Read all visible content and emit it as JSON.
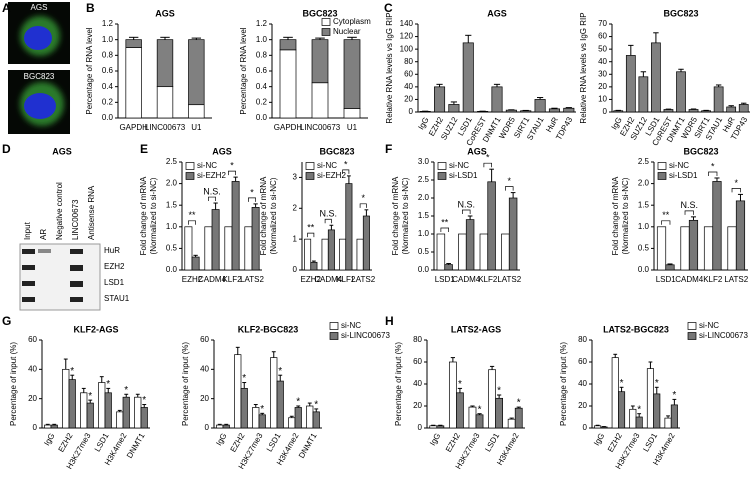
{
  "panel_labels": [
    "A",
    "B",
    "C",
    "D",
    "E",
    "F",
    "G",
    "H"
  ],
  "images": {
    "labels": [
      "AGS",
      "BGC823"
    ]
  },
  "blot": {
    "title": "AGS",
    "lanes": [
      "Input",
      "AR",
      "Negative control",
      "LINC00673",
      "Antisense RNA"
    ],
    "proteins": [
      "HuR",
      "EZH2",
      "LSD1",
      "STAU1"
    ]
  },
  "chart_data": [
    {
      "type": "stacked_bar",
      "title": "AGS",
      "ylabel": "Percentage of RNA level",
      "categories": [
        "GAPDH",
        "LINC00673",
        "U1"
      ],
      "series": [
        {
          "color": "#ffffff",
          "values": [
            0.9,
            0.4,
            0.17
          ],
          "errors": [
            0.02,
            0.03,
            0.02
          ]
        },
        {
          "color": "#808080",
          "values": [
            0.1,
            0.6,
            0.83
          ],
          "errors": [
            0.03,
            0.03,
            0.02
          ]
        }
      ],
      "ylim": [
        0,
        1.2
      ],
      "yticks": [
        {
          "value": 0,
          "label": "0.0"
        },
        0.2,
        0.4,
        0.6,
        0.8,
        {
          "value": 1,
          "label": "1.0"
        },
        1.2
      ]
    },
    {
      "type": "stacked_bar",
      "title": "BGC823",
      "ylabel": "Percentage of RNA level",
      "categories": [
        "GAPDH",
        "LINC00673",
        "U1"
      ],
      "legend": "upper right",
      "series": [
        {
          "name": "Cytoplasm",
          "color": "#ffffff",
          "values": [
            0.87,
            0.45,
            0.12
          ],
          "errors": [
            0.02,
            0.02,
            0.02
          ]
        },
        {
          "name": "Nuclear",
          "color": "#808080",
          "values": [
            0.13,
            0.55,
            0.88
          ],
          "errors": [
            0.03,
            0.02,
            0.03
          ]
        }
      ],
      "ylim": [
        0,
        1.2
      ],
      "yticks": [
        {
          "value": 0,
          "label": "0.0"
        },
        0.2,
        0.4,
        0.6,
        0.8,
        {
          "value": 1,
          "label": "1.0"
        },
        1.2
      ]
    },
    {
      "type": "bar",
      "title": "AGS",
      "ylabel": "Relative RNA levels vs IgG RIP",
      "categories": [
        "IgG",
        "EZH2",
        "SUZ12",
        "LSD1",
        "CoREST",
        "DNMT1",
        "WDR5",
        "SIRT1",
        "STAU1",
        "HuR",
        "TDP43"
      ],
      "series": [
        {
          "color": "#808080",
          "values": [
            1,
            40,
            12,
            110,
            1,
            40,
            3,
            2,
            20,
            5,
            6
          ],
          "errors": [
            0.3,
            4,
            4,
            12,
            0.3,
            4,
            0.5,
            0.5,
            3,
            1,
            1
          ]
        }
      ],
      "ylim": [
        0,
        140
      ],
      "yticks": [
        0,
        20,
        40,
        60,
        80,
        100,
        120,
        140
      ]
    },
    {
      "type": "bar",
      "title": "BGC823",
      "ylabel": "Relative RNA levels vs IgG RIP",
      "categories": [
        "IgG",
        "EZH2",
        "SUZ12",
        "LSD1",
        "CoREST",
        "DNMT1",
        "WDR5",
        "SIRT1",
        "STAU1",
        "HuR",
        "TDP43"
      ],
      "series": [
        {
          "color": "#808080",
          "values": [
            1,
            45,
            28,
            55,
            2,
            32,
            2,
            1,
            20,
            4,
            6
          ],
          "errors": [
            0.3,
            8,
            4,
            8,
            0.3,
            2,
            0.4,
            0.3,
            1.5,
            1,
            1
          ]
        }
      ],
      "ylim": [
        0,
        70
      ],
      "yticks": [
        0,
        10,
        20,
        30,
        40,
        50,
        60,
        70
      ]
    },
    {
      "type": "bar",
      "title": "AGS",
      "ylabel": [
        "Fold change of mRNA",
        "(Normalized to si-NC)"
      ],
      "categories": [
        "EZH2",
        "CADM4",
        "KLF2",
        "LATS2"
      ],
      "legend": "upper left",
      "series": [
        {
          "name": "si-NC",
          "color": "#ffffff",
          "values": [
            1,
            1,
            1,
            1
          ]
        },
        {
          "name": "si-EZH2",
          "color": "#777777",
          "values": [
            0.3,
            1.4,
            2.05,
            1.45
          ],
          "errors": [
            0.04,
            0.15,
            0.1,
            0.08
          ]
        }
      ],
      "annotations": [
        "**",
        "N.S.",
        "*",
        "*"
      ],
      "ylim": [
        0,
        2.5
      ],
      "yticks": [
        {
          "value": 0,
          "label": "0.0"
        },
        0.5,
        {
          "value": 1,
          "label": "1.0"
        },
        1.5,
        {
          "value": 2,
          "label": "2.0"
        },
        2.5
      ]
    },
    {
      "type": "bar",
      "title": "BGC823",
      "ylabel": [
        "Fold change of mRNA",
        "(Normalized to si-NC)"
      ],
      "categories": [
        "EZH2",
        "CADM4",
        "KLF2",
        "LATS2"
      ],
      "legend": "upper left",
      "series": [
        {
          "name": "si-NC",
          "color": "#ffffff",
          "values": [
            1,
            1,
            1,
            1
          ]
        },
        {
          "name": "si-EZH2",
          "color": "#777777",
          "values": [
            0.25,
            1.3,
            2.8,
            1.75
          ],
          "errors": [
            0.04,
            0.15,
            0.25,
            0.2
          ]
        }
      ],
      "annotations": [
        "**",
        "N.S.",
        "*",
        "*"
      ],
      "ylim": [
        0,
        3.5
      ],
      "yticks": [
        0,
        1,
        2,
        3
      ]
    },
    {
      "type": "bar",
      "title": "AGS",
      "ylabel": [
        "Fold change of mRNA",
        "(Normalized to si-NC)"
      ],
      "categories": [
        "LSD1",
        "CADM4",
        "KLF2",
        "LATS2"
      ],
      "legend": "upper left",
      "series": [
        {
          "name": "si-NC",
          "color": "#ffffff",
          "values": [
            1,
            1,
            1,
            1
          ]
        },
        {
          "name": "si-LSD1",
          "color": "#777777",
          "values": [
            0.15,
            1.4,
            2.45,
            2.0
          ],
          "errors": [
            0.03,
            0.1,
            0.35,
            0.15
          ]
        }
      ],
      "annotations": [
        "**",
        "N.S.",
        "*",
        "*"
      ],
      "ylim": [
        0,
        3
      ],
      "yticks": [
        {
          "value": 0,
          "label": "0.0"
        },
        0.5,
        {
          "value": 1,
          "label": "1.0"
        },
        1.5,
        {
          "value": 2,
          "label": "2.0"
        },
        2.5,
        {
          "value": 3,
          "label": "3.0"
        }
      ]
    },
    {
      "type": "bar",
      "title": "BGC823",
      "ylabel": [
        "Fold change of mRNA",
        "(Normalized to si-NC)"
      ],
      "categories": [
        "LSD1",
        "CADM4",
        "KLF2",
        "LATS2"
      ],
      "legend": "upper left",
      "series": [
        {
          "name": "si-NC",
          "color": "#ffffff",
          "values": [
            1,
            1,
            1,
            1
          ]
        },
        {
          "name": "si-LSD1",
          "color": "#777777",
          "values": [
            0.12,
            1.15,
            2.05,
            1.6
          ],
          "errors": [
            0.02,
            0.08,
            0.08,
            0.15
          ]
        }
      ],
      "annotations": [
        "**",
        "N.S.",
        "*",
        "*"
      ],
      "ylim": [
        0,
        2.5
      ],
      "yticks": [
        {
          "value": 0,
          "label": "0.0"
        },
        0.5,
        {
          "value": 1,
          "label": "1.0"
        },
        1.5,
        {
          "value": 2,
          "label": "2.0"
        },
        2.5
      ]
    },
    {
      "type": "bar",
      "title": "KLF2-AGS",
      "ylabel": "Percentage of input (%)",
      "categories": [
        "IgG",
        "EZH2",
        "H3K27me3",
        "LSD1",
        "H3K4me2",
        "DNMT1"
      ],
      "series": [
        {
          "color": "#ffffff",
          "values": [
            2,
            40,
            24,
            31,
            11,
            21
          ],
          "errors": [
            0.5,
            7,
            3,
            4,
            1,
            2
          ]
        },
        {
          "color": "#777777",
          "values": [
            2,
            33,
            17,
            24,
            21,
            14
          ],
          "errors": [
            0.5,
            3,
            2,
            3,
            2,
            2
          ],
          "annotations": [
            null,
            "*",
            "*",
            "*",
            "*",
            "*"
          ]
        }
      ],
      "ylim": [
        0,
        60
      ],
      "yticks": [
        0,
        20,
        40,
        60
      ]
    },
    {
      "type": "bar",
      "title": "KLF2-BGC823",
      "ylabel": "Percentage of input (%)",
      "categories": [
        "IgG",
        "EZH2",
        "H3K27me3",
        "LSD1",
        "H3K4me2",
        "DNMT1"
      ],
      "legend": "right",
      "series": [
        {
          "name": "si-NC",
          "color": "#ffffff",
          "values": [
            2,
            50,
            14,
            48,
            7,
            15
          ],
          "errors": [
            0.5,
            5,
            2,
            4,
            1,
            2
          ]
        },
        {
          "name": "si-LINC00673",
          "color": "#777777",
          "values": [
            2,
            27,
            9,
            32,
            14,
            11
          ],
          "errors": [
            0.5,
            4,
            1,
            4,
            1,
            2
          ],
          "annotations": [
            null,
            "*",
            "*",
            "*",
            "*",
            "*"
          ]
        }
      ],
      "ylim": [
        0,
        60
      ],
      "yticks": [
        0,
        20,
        40,
        60
      ]
    },
    {
      "type": "bar",
      "title": "LATS2-AGS",
      "ylabel": "Percentage of input (%)",
      "categories": [
        "IgG",
        "EZH2",
        "H3K27me3",
        "LSD1",
        "H3K4me2"
      ],
      "series": [
        {
          "color": "#ffffff",
          "values": [
            2,
            60,
            19,
            53,
            8
          ],
          "errors": [
            0.5,
            4,
            1,
            3,
            1
          ]
        },
        {
          "color": "#777777",
          "values": [
            2,
            32,
            12,
            27,
            18
          ],
          "errors": [
            0.5,
            4,
            1,
            3,
            1
          ],
          "annotations": [
            null,
            "*",
            "*",
            "*",
            "*"
          ]
        }
      ],
      "ylim": [
        0,
        80
      ],
      "yticks": [
        0,
        20,
        40,
        60,
        80
      ]
    },
    {
      "type": "bar",
      "title": "LATS2-BGC823",
      "ylabel": "Percentage of input (%)",
      "categories": [
        "IgG",
        "EZH2",
        "H3K27me3",
        "LSD1",
        "H3K4me2"
      ],
      "legend": "right",
      "series": [
        {
          "name": "si-NC",
          "color": "#ffffff",
          "values": [
            2,
            64,
            17,
            54,
            9
          ],
          "errors": [
            0.5,
            3,
            3,
            6,
            2
          ]
        },
        {
          "name": "si-LINC00673",
          "color": "#777777",
          "values": [
            1,
            33,
            10,
            31,
            21
          ],
          "errors": [
            0.3,
            4,
            3,
            6,
            5
          ],
          "annotations": [
            null,
            "*",
            "*",
            "*",
            "*"
          ]
        }
      ],
      "ylim": [
        0,
        80
      ],
      "yticks": [
        0,
        20,
        40,
        60,
        80
      ]
    }
  ]
}
